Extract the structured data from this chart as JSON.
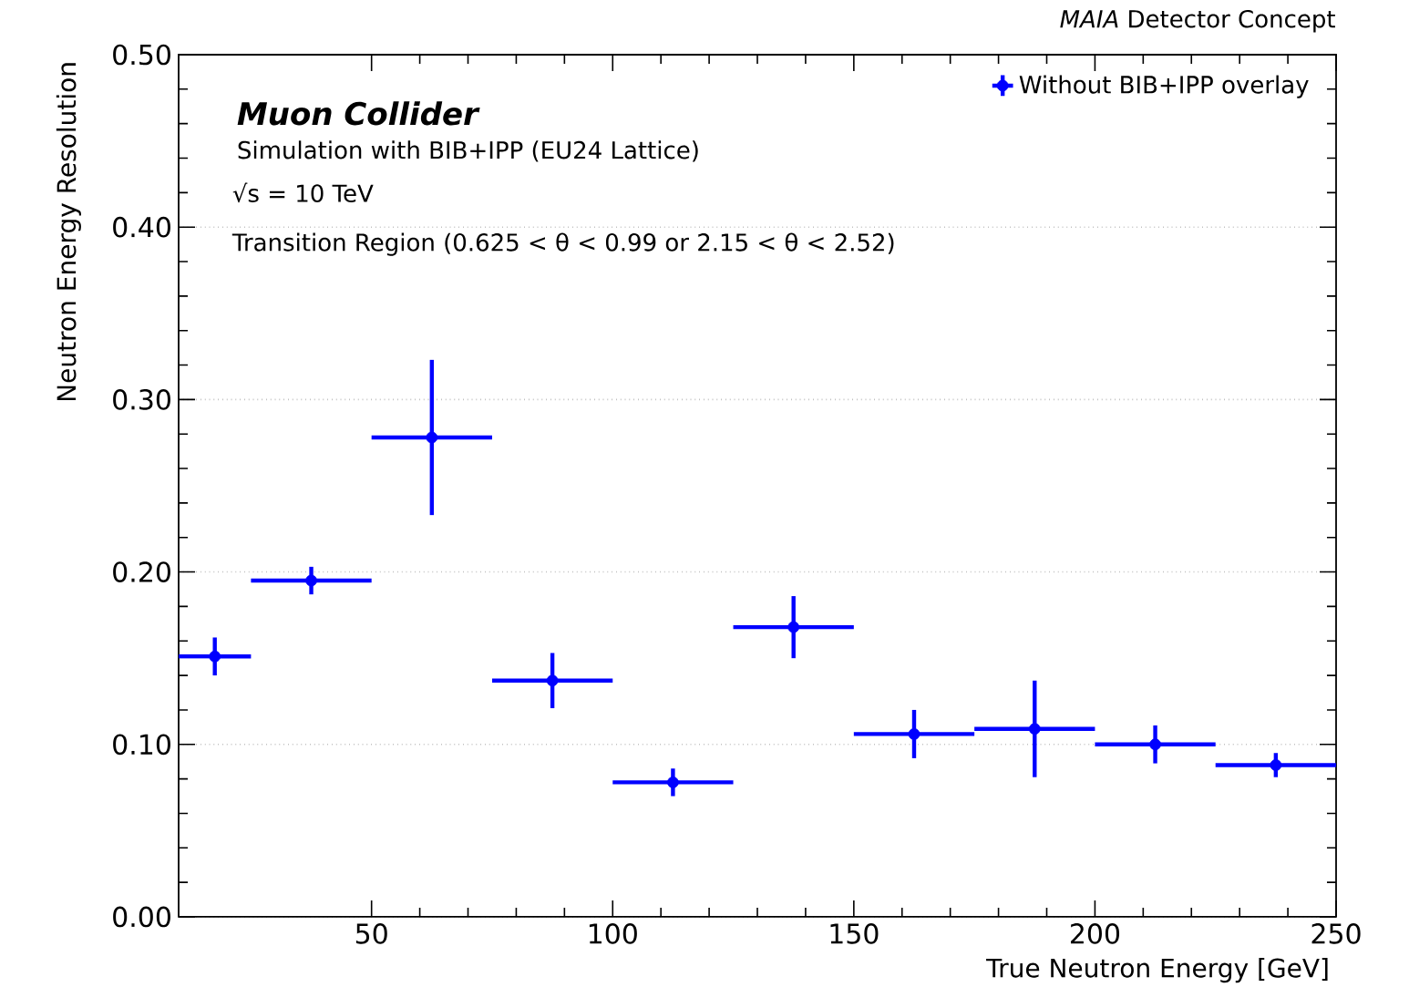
{
  "chart_data": {
    "type": "scatter",
    "xlabel": "True Neutron Energy [GeV]",
    "ylabel": "Neutron Energy Resolution",
    "annotations": [
      "*MAIA* Detector Concept",
      "Muon Collider",
      "Simulation with BIB+IPP (EU24 Lattice)",
      "√s = 10 TeV",
      "Transition Region (0.625 < θ < 0.99 or 2.15 < θ < 2.52)"
    ],
    "xlim": [
      10,
      250
    ],
    "xticks": [
      50,
      100,
      150,
      200,
      250
    ],
    "ylim": [
      0,
      0.5
    ],
    "yticks": [
      {
        "value": 0,
        "label": "0.00"
      },
      {
        "value": 0.1,
        "label": "0.10"
      },
      {
        "value": 0.2,
        "label": "0.20"
      },
      {
        "value": 0.3,
        "label": "0.30"
      },
      {
        "value": 0.4,
        "label": "0.40"
      },
      {
        "value": 0.5,
        "label": "0.50"
      }
    ],
    "grid": "y",
    "legend": "top right",
    "marker": "circle",
    "series": [
      {
        "name": "Without BIB+IPP overlay",
        "color": "#0000ff",
        "x": [
          17.5,
          37.5,
          62.5,
          87.5,
          112.5,
          137.5,
          162.5,
          187.5,
          212.5,
          237.5
        ],
        "values": [
          0.151,
          0.195,
          0.278,
          0.137,
          0.078,
          0.168,
          0.106,
          0.109,
          0.1,
          0.088
        ],
        "errors": [
          0.011,
          0.008,
          0.045,
          0.016,
          0.008,
          0.018,
          0.014,
          0.028,
          0.011,
          0.007
        ],
        "xerrors": [
          7.5,
          12.5,
          12.5,
          12.5,
          12.5,
          12.5,
          12.5,
          12.5,
          12.5,
          12.5
        ]
      }
    ]
  }
}
